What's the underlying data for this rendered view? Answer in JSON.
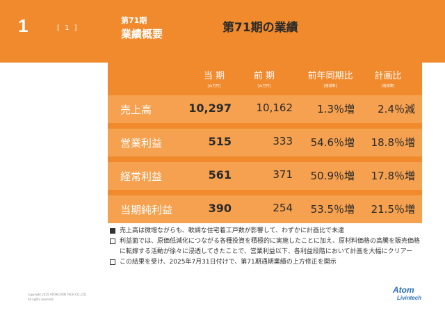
{
  "header": {
    "page_number": "1",
    "sub_number": "[ 1 ]",
    "period": "第71期",
    "overview": "業績概要",
    "title": "第71期の業績"
  },
  "table": {
    "columns": [
      {
        "label": "当 期",
        "unit": "[百万円]"
      },
      {
        "label": "前 期",
        "unit": "[百万円]"
      },
      {
        "label": "前年同期比",
        "unit": "[増減率]"
      },
      {
        "label": "計画比",
        "unit": "[増減率]"
      }
    ],
    "rows": [
      {
        "label": "売上高",
        "current": "10,297",
        "previous": "10,162",
        "yoy": "1.3％増",
        "plan": "2.4％減"
      },
      {
        "label": "営業利益",
        "current": "515",
        "previous": "333",
        "yoy": "54.6％増",
        "plan": "18.8％増"
      },
      {
        "label": "経常利益",
        "current": "561",
        "previous": "371",
        "yoy": "50.9％増",
        "plan": "17.8％増"
      },
      {
        "label": "当期純利益",
        "current": "390",
        "previous": "254",
        "yoy": "53.5％増",
        "plan": "21.5％増"
      }
    ]
  },
  "notes": [
    {
      "filled": true,
      "text": "売上高は微増ながらも、軟調な住宅着工戸数が影響して、わずかに計画比で未達"
    },
    {
      "filled": false,
      "text": "利益面では、原価低減化につながる各種投資を積極的に実施したことに加え、原材料価格の高騰を販売価格に転嫁する活動が徐々に浸透してきたことで、営業利益以下、各利益段階において計画を大幅にクリアー"
    },
    {
      "filled": false,
      "text": "この結果を受け、2025年7月31日付けで、第71期通期業績の上方修正を開示"
    }
  ],
  "footer": {
    "copyright": "copyright 2025 ATOM LIVIN TECH CO.,LTD.",
    "rights": "All rights reserved.",
    "logo_top": "Atom",
    "logo_bottom": "Livintech"
  },
  "colors": {
    "accent": "#f08a2c",
    "row": "#f5a14f",
    "logo": "#2a6fb8"
  }
}
